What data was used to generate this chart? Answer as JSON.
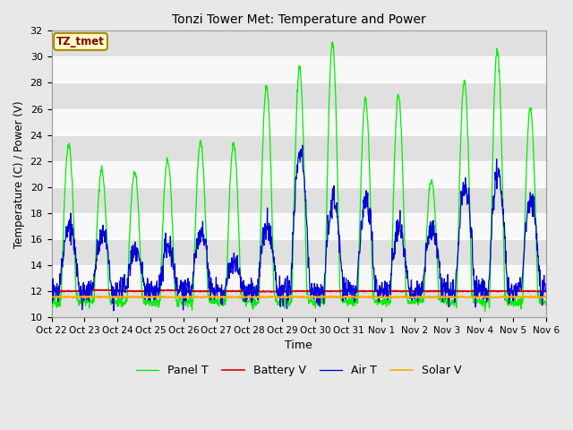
{
  "title": "Tonzi Tower Met: Temperature and Power",
  "xlabel": "Time",
  "ylabel": "Temperature (C) / Power (V)",
  "ylim": [
    10,
    32
  ],
  "yticks": [
    10,
    12,
    14,
    16,
    18,
    20,
    22,
    24,
    26,
    28,
    30,
    32
  ],
  "x_tick_labels": [
    "Oct 22",
    "Oct 23",
    "Oct 24",
    "Oct 25",
    "Oct 26",
    "Oct 27",
    "Oct 28",
    "Oct 29",
    "Oct 30",
    "Oct 31",
    "Nov 1",
    "Nov 2",
    "Nov 3",
    "Nov 4",
    "Nov 5",
    "Nov 6"
  ],
  "annotation_text": "TZ_tmet",
  "annotation_bg": "#ffffcc",
  "annotation_fg": "#880000",
  "annotation_edge": "#aa8800",
  "fig_bg_color": "#e8e8e8",
  "plot_bg_color": "#f0f0f0",
  "band_color_odd": "#e0e0e0",
  "band_color_even": "#f8f8f8",
  "grid_color": "#ffffff",
  "colors": {
    "panel_t": "#00ee00",
    "battery_v": "#dd0000",
    "air_t": "#0000dd",
    "solar_v": "#ffaa00"
  },
  "legend": [
    "Panel T",
    "Battery V",
    "Air T",
    "Solar V"
  ],
  "n_days": 15,
  "day_peaks_panel": [
    23.3,
    21.3,
    21.2,
    22.1,
    23.4,
    23.3,
    27.8,
    29.2,
    31.0,
    26.7,
    27.0,
    20.5,
    28.2,
    30.5,
    26.0
  ],
  "day_peaks_air": [
    17.0,
    16.5,
    15.0,
    15.5,
    16.5,
    14.2,
    17.0,
    22.7,
    19.0,
    19.0,
    17.0,
    17.0,
    20.0,
    21.0,
    19.0
  ],
  "panel_night_base": 11.2,
  "air_night_base": 12.0,
  "battery_mean": 12.0,
  "solar_mean": 11.55
}
